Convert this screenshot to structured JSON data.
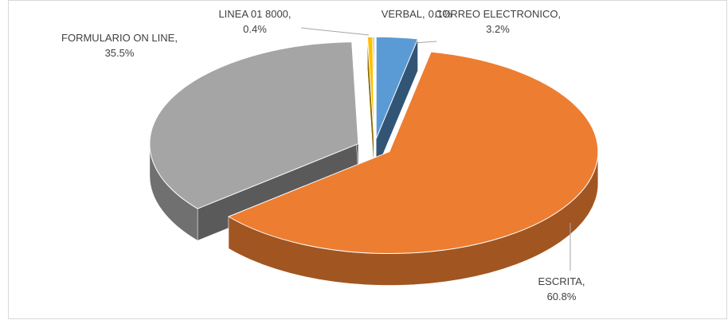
{
  "chart_data": {
    "type": "pie3d",
    "categories": [
      "CORREO ELECTRONICO,",
      "ESCRITA,",
      "FORMULARIO ON LINE,",
      "LINEA 01 8000,",
      "VERBAL,"
    ],
    "values": [
      3.2,
      60.8,
      35.5,
      0.4,
      0.1
    ],
    "value_labels": [
      "3.2%",
      "60.8%",
      "35.5%",
      "0.4%",
      "0.1%"
    ],
    "colors": [
      "#5b9bd5",
      "#ed7d31",
      "#a5a5a5",
      "#ffc000",
      "#4472c4"
    ]
  }
}
